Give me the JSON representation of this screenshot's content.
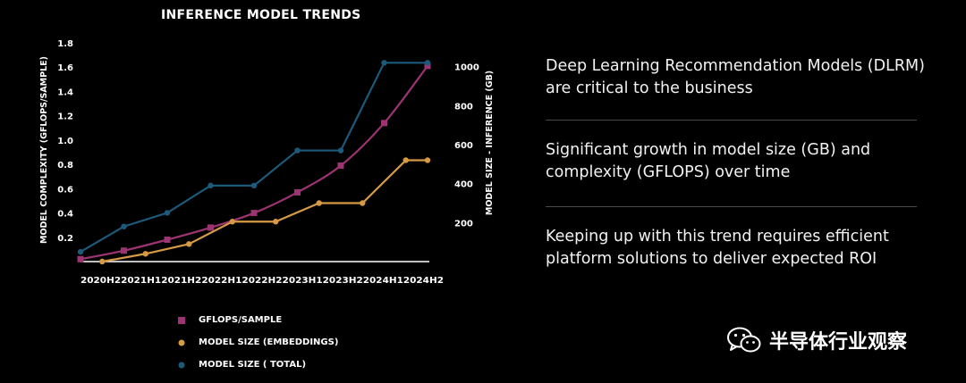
{
  "chart_data": {
    "type": "line",
    "title": "INFERENCE MODEL TRENDS",
    "categories": [
      "2020 H2",
      "2021 H1",
      "2021 H2",
      "2022 H1",
      "2022 H2",
      "2023 H1",
      "2023 H2",
      "2024 H1",
      "2024 H2"
    ],
    "tick_labels": [
      "2020 H2",
      "2021 H1",
      "2021 H2",
      "2022 H1",
      "2022 H2",
      "2023 H1",
      "2023 H2",
      "2024 H1",
      "2024 H2"
    ],
    "ylabel_left": "MODEL COMPLEXITY (GFLOPS/SAMPLE)",
    "ylabel_right": "MODEL SIZE - INFERENCE (GB)",
    "ylim_left": [
      0,
      1.8
    ],
    "ylim_right": [
      0,
      1200
    ],
    "yticks_left": [
      "1.8",
      "1.6",
      "1.4",
      "1.2",
      "1.0",
      "0.8",
      "0.6",
      "0.4",
      "0.2"
    ],
    "yticks_right": [
      "1000",
      "800",
      "600",
      "400",
      "200"
    ],
    "series": [
      {
        "name": "GFLOPS/SAMPLE",
        "axis": "left",
        "color": "#9c3472",
        "marker": "square",
        "curve": "smooth",
        "x": [
          0,
          1,
          2,
          3,
          4,
          5,
          6,
          7,
          8
        ],
        "values": [
          0.02,
          0.09,
          0.18,
          0.28,
          0.4,
          0.57,
          0.79,
          1.14,
          1.61
        ]
      },
      {
        "name": "MODEL SIZE (EMBEDDINGS)",
        "axis": "right",
        "color": "#d69a45",
        "marker": "circle",
        "curve": "straight",
        "x": [
          0.5,
          1.5,
          2.5,
          3.5,
          4.5,
          5.5,
          6.5,
          7.5,
          8
        ],
        "values": [
          0,
          40,
          90,
          205,
          205,
          300,
          300,
          520,
          520
        ]
      },
      {
        "name": "MODEL SIZE ( TOTAL)",
        "axis": "right",
        "color": "#1d5a7a",
        "marker": "circle",
        "curve": "straight",
        "x": [
          0,
          1,
          2,
          3,
          4,
          5,
          6,
          7,
          8
        ],
        "values": [
          50,
          180,
          250,
          390,
          390,
          570,
          570,
          1020,
          1020
        ]
      }
    ],
    "legend_position": "bottom",
    "grid": false
  },
  "bullets": [
    "Deep Learning Recommendation Models (DLRM) are critical to the business",
    "Significant growth in model size (GB) and complexity (GFLOPS) over time",
    "Keeping up with this trend requires efficient platform solutions to deliver expected ROI"
  ],
  "watermark": {
    "text": "半导体行业观察",
    "icon": "wechat-icon"
  }
}
